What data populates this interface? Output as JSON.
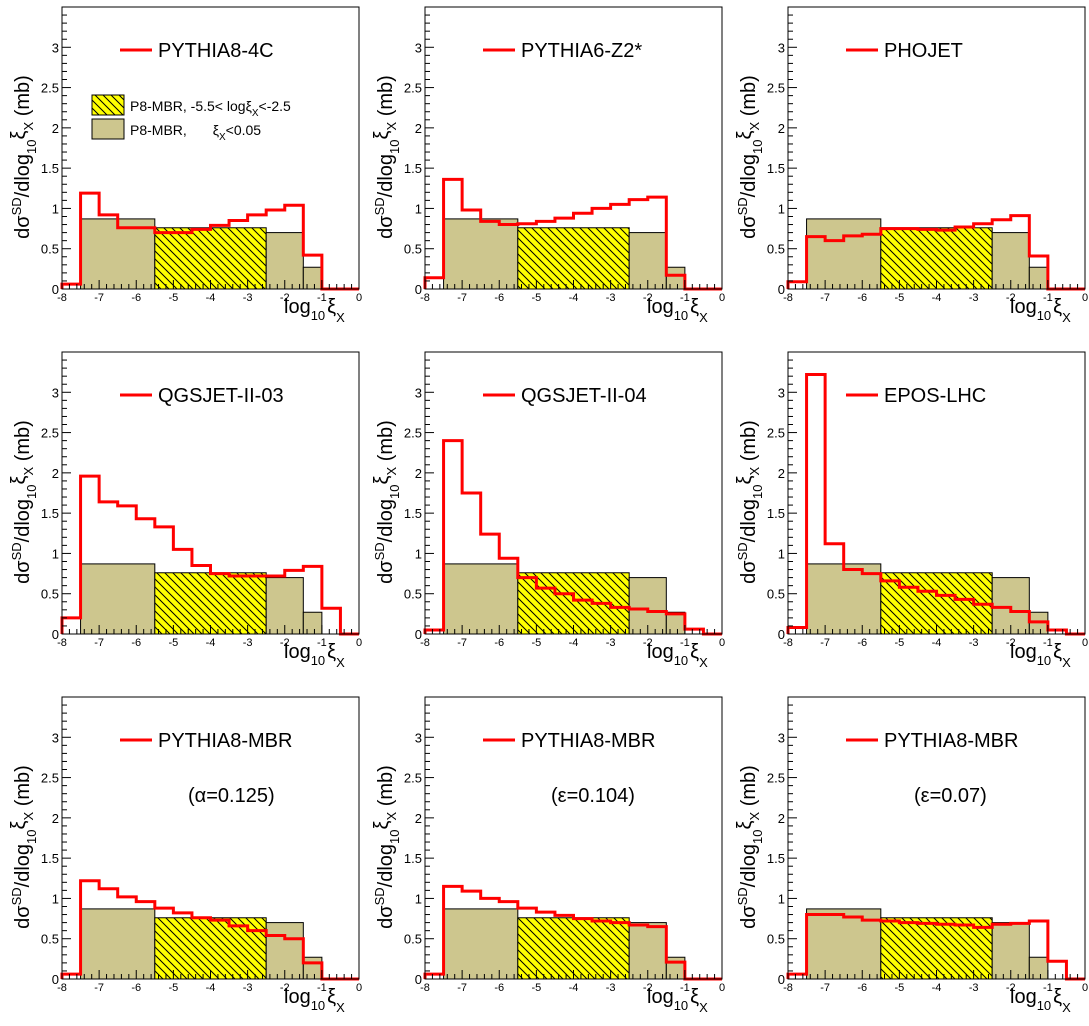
{
  "figure": {
    "xlabel": "log",
    "xlabel_sub": "10",
    "xlabel_var": "ξ",
    "xlabel_varsub": "X",
    "ylabel_prefix": "dσ",
    "ylabel_sup": "SD",
    "ylabel_mid": "/dlog",
    "ylabel_sub": "10",
    "ylabel_var": "ξ",
    "ylabel_varsub": "X",
    "ylabel_unit": "(mb)",
    "x_ticks": [
      "-8",
      "-7",
      "-6",
      "-5",
      "-4",
      "-3",
      "-2",
      "-1",
      "0"
    ],
    "y_ticks": [
      "0",
      "0.5",
      "1",
      "1.5",
      "2",
      "2.5",
      "3"
    ],
    "xlim": [
      -8,
      0
    ],
    "ylim": [
      0,
      3.5
    ],
    "colors": {
      "mc_line": "#ff0000",
      "hatched_fill": "#ffff00",
      "olive_fill": "#cdc68e",
      "frame": "#000000"
    },
    "reference_legend": {
      "hatched": {
        "text": "P8-MBR, -5.5< log",
        "var": "ξ",
        "varsub": "X",
        "tail": "<-2.5"
      },
      "plain": {
        "text": "P8-MBR, ",
        "var": "ξ",
        "varsub": "X",
        "tail": "<0.05"
      }
    }
  },
  "chart_data": [
    {
      "type": "bar",
      "panel": 1,
      "series": [
        {
          "name": "PYTHIA8-4C",
          "bin_edges": [
            -8.0,
            -7.5,
            -7.0,
            -6.5,
            -6.0,
            -5.5,
            -5.0,
            -4.5,
            -4.0,
            -3.5,
            -3.0,
            -2.5,
            -2.0,
            -1.5,
            -1.0,
            -0.5,
            0.0
          ],
          "values": [
            0.06,
            1.19,
            0.92,
            0.76,
            0.76,
            0.7,
            0.7,
            0.74,
            0.79,
            0.85,
            0.92,
            0.98,
            1.04,
            0.42,
            0,
            0
          ]
        }
      ],
      "reference_bin_edges": [
        -7.5,
        -5.5,
        -2.5,
        -1.5,
        -1.0
      ],
      "reference_values": [
        0.87,
        0.76,
        0.7,
        0.27
      ]
    },
    {
      "type": "bar",
      "panel": 2,
      "series": [
        {
          "name": "PYTHIA6-Z2*",
          "bin_edges": [
            -8.0,
            -7.5,
            -7.0,
            -6.5,
            -6.0,
            -5.5,
            -5.0,
            -4.5,
            -4.0,
            -3.5,
            -3.0,
            -2.5,
            -2.0,
            -1.5,
            -1.0,
            -0.5,
            0.0
          ],
          "values": [
            0.14,
            1.36,
            0.98,
            0.84,
            0.8,
            0.81,
            0.84,
            0.88,
            0.94,
            1.0,
            1.05,
            1.11,
            1.14,
            0.17,
            0,
            0
          ]
        }
      ],
      "reference_bin_edges": [
        -7.5,
        -5.5,
        -2.5,
        -1.5,
        -1.0
      ],
      "reference_values": [
        0.87,
        0.76,
        0.7,
        0.27
      ]
    },
    {
      "type": "bar",
      "panel": 3,
      "series": [
        {
          "name": "PHOJET",
          "bin_edges": [
            -8.0,
            -7.5,
            -7.0,
            -6.5,
            -6.0,
            -5.5,
            -5.0,
            -4.5,
            -4.0,
            -3.5,
            -3.0,
            -2.5,
            -2.0,
            -1.5,
            -1.0,
            -0.5,
            0.0
          ],
          "values": [
            0.09,
            0.65,
            0.6,
            0.66,
            0.68,
            0.75,
            0.75,
            0.74,
            0.73,
            0.77,
            0.81,
            0.86,
            0.91,
            0.41,
            0,
            0
          ]
        }
      ],
      "reference_bin_edges": [
        -7.5,
        -5.5,
        -2.5,
        -1.5,
        -1.0
      ],
      "reference_values": [
        0.87,
        0.76,
        0.7,
        0.27
      ]
    },
    {
      "type": "bar",
      "panel": 4,
      "series": [
        {
          "name": "QGSJET-II-03",
          "bin_edges": [
            -8.0,
            -7.5,
            -7.0,
            -6.5,
            -6.0,
            -5.5,
            -5.0,
            -4.5,
            -4.0,
            -3.5,
            -3.0,
            -2.5,
            -2.0,
            -1.5,
            -1.0,
            -0.5,
            0.0
          ],
          "values": [
            0.2,
            1.96,
            1.64,
            1.59,
            1.43,
            1.33,
            1.05,
            0.85,
            0.75,
            0.72,
            0.72,
            0.72,
            0.79,
            0.84,
            0.32,
            0
          ]
        }
      ],
      "reference_bin_edges": [
        -7.5,
        -5.5,
        -2.5,
        -1.5,
        -1.0
      ],
      "reference_values": [
        0.87,
        0.76,
        0.7,
        0.27
      ]
    },
    {
      "type": "bar",
      "panel": 5,
      "series": [
        {
          "name": "QGSJET-II-04",
          "bin_edges": [
            -8.0,
            -7.5,
            -7.0,
            -6.5,
            -6.0,
            -5.5,
            -5.0,
            -4.5,
            -4.0,
            -3.5,
            -3.0,
            -2.5,
            -2.0,
            -1.5,
            -1.0,
            -0.5,
            0.0
          ],
          "values": [
            0.05,
            2.4,
            1.75,
            1.24,
            0.94,
            0.7,
            0.57,
            0.5,
            0.42,
            0.38,
            0.33,
            0.31,
            0.28,
            0.25,
            0.06,
            0
          ]
        }
      ],
      "reference_bin_edges": [
        -7.5,
        -5.5,
        -2.5,
        -1.5,
        -1.0
      ],
      "reference_values": [
        0.87,
        0.76,
        0.7,
        0.27
      ]
    },
    {
      "type": "bar",
      "panel": 6,
      "series": [
        {
          "name": "EPOS-LHC",
          "bin_edges": [
            -8.0,
            -7.5,
            -7.0,
            -6.5,
            -6.0,
            -5.5,
            -5.0,
            -4.5,
            -4.0,
            -3.5,
            -3.0,
            -2.5,
            -2.0,
            -1.5,
            -1.0,
            -0.5,
            0.0
          ],
          "values": [
            0.08,
            3.22,
            1.12,
            0.8,
            0.75,
            0.66,
            0.58,
            0.53,
            0.48,
            0.43,
            0.37,
            0.33,
            0.28,
            0.15,
            0.05,
            0
          ]
        }
      ],
      "reference_bin_edges": [
        -7.5,
        -5.5,
        -2.5,
        -1.5,
        -1.0
      ],
      "reference_values": [
        0.87,
        0.76,
        0.7,
        0.27
      ]
    },
    {
      "type": "bar",
      "panel": 7,
      "note": "(α=0.125)",
      "series": [
        {
          "name": "PYTHIA8-MBR",
          "bin_edges": [
            -8.0,
            -7.5,
            -7.0,
            -6.5,
            -6.0,
            -5.5,
            -5.0,
            -4.5,
            -4.0,
            -3.5,
            -3.0,
            -2.5,
            -2.0,
            -1.5,
            -1.0,
            -0.5,
            0.0
          ],
          "values": [
            0.06,
            1.22,
            1.12,
            1.02,
            0.96,
            0.88,
            0.82,
            0.76,
            0.73,
            0.66,
            0.6,
            0.54,
            0.5,
            0.2,
            0,
            0
          ]
        }
      ],
      "reference_bin_edges": [
        -7.5,
        -5.5,
        -2.5,
        -1.5,
        -1.0
      ],
      "reference_values": [
        0.87,
        0.76,
        0.7,
        0.27
      ]
    },
    {
      "type": "bar",
      "panel": 8,
      "note": "(ε=0.104)",
      "series": [
        {
          "name": "PYTHIA8-MBR",
          "bin_edges": [
            -8.0,
            -7.5,
            -7.0,
            -6.5,
            -6.0,
            -5.5,
            -5.0,
            -4.5,
            -4.0,
            -3.5,
            -3.0,
            -2.5,
            -2.0,
            -1.5,
            -1.0,
            -0.5,
            0.0
          ],
          "values": [
            0.06,
            1.15,
            1.09,
            1.0,
            0.96,
            0.88,
            0.83,
            0.79,
            0.75,
            0.72,
            0.7,
            0.67,
            0.65,
            0.21,
            0,
            0
          ]
        }
      ],
      "reference_bin_edges": [
        -7.5,
        -5.5,
        -2.5,
        -1.5,
        -1.0
      ],
      "reference_values": [
        0.87,
        0.76,
        0.7,
        0.27
      ]
    },
    {
      "type": "bar",
      "panel": 9,
      "note": "(ε=0.07)",
      "series": [
        {
          "name": "PYTHIA8-MBR",
          "bin_edges": [
            -8.0,
            -7.5,
            -7.0,
            -6.5,
            -6.0,
            -5.5,
            -5.0,
            -4.5,
            -4.0,
            -3.5,
            -3.0,
            -2.5,
            -2.0,
            -1.5,
            -1.0,
            -0.5,
            0.0
          ],
          "values": [
            0.06,
            0.8,
            0.8,
            0.77,
            0.73,
            0.72,
            0.7,
            0.69,
            0.68,
            0.67,
            0.64,
            0.68,
            0.69,
            0.72,
            0.22,
            0
          ]
        }
      ],
      "reference_bin_edges": [
        -7.5,
        -5.5,
        -2.5,
        -1.5,
        -1.0
      ],
      "reference_values": [
        0.87,
        0.76,
        0.7,
        0.27
      ]
    }
  ]
}
